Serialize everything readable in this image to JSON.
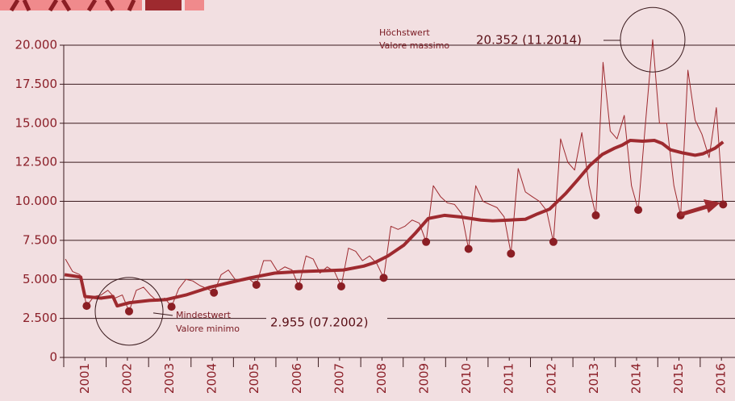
{
  "chart_data": {
    "type": "line",
    "ylim": [
      0,
      20000
    ],
    "yticks": [
      0,
      {
        "value": 2500,
        "label": "2.500"
      },
      {
        "value": 5000,
        "label": "5.000"
      },
      {
        "value": 7500,
        "label": "7.500"
      },
      {
        "value": 10000,
        "label": "10.000"
      },
      {
        "value": 12500,
        "label": "12.500"
      },
      {
        "value": 15000,
        "label": "15.000"
      },
      {
        "value": 17500,
        "label": "17.500"
      },
      {
        "value": 20000,
        "label": "20.000"
      }
    ],
    "xlim": [
      2001,
      2016.82
    ],
    "xticks": [
      {
        "value": 2001.5,
        "label": "2001"
      },
      {
        "value": 2002.5,
        "label": "2002"
      },
      {
        "value": 2003.5,
        "label": "2003"
      },
      {
        "value": 2004.5,
        "label": "2004"
      },
      {
        "value": 2005.5,
        "label": "2005"
      },
      {
        "value": 2006.5,
        "label": "2006"
      },
      {
        "value": 2007.5,
        "label": "2007"
      },
      {
        "value": 2008.5,
        "label": "2008"
      },
      {
        "value": 2009.5,
        "label": "2009"
      },
      {
        "value": 2010.5,
        "label": "2010"
      },
      {
        "value": 2011.5,
        "label": "2011"
      },
      {
        "value": 2012.5,
        "label": "2012"
      },
      {
        "value": 2013.5,
        "label": "2013"
      },
      {
        "value": 2014.5,
        "label": "2014"
      },
      {
        "value": 2015.5,
        "label": "2015"
      },
      {
        "value": 2016.5,
        "label": "2016"
      }
    ],
    "grid": true,
    "series": [
      {
        "style": "thin",
        "color": "#9e2a2f",
        "x": [
          2001.04,
          2001.21,
          2001.38,
          2001.54,
          2001.71,
          2001.88,
          2002.04,
          2002.21,
          2002.38,
          2002.54,
          2002.71,
          2002.88,
          2003.04,
          2003.21,
          2003.38,
          2003.54,
          2003.71,
          2003.88,
          2004.04,
          2004.21,
          2004.38,
          2004.54,
          2004.71,
          2004.88,
          2005.04,
          2005.21,
          2005.38,
          2005.54,
          2005.71,
          2005.88,
          2006.04,
          2006.21,
          2006.38,
          2006.54,
          2006.71,
          2006.88,
          2007.04,
          2007.21,
          2007.38,
          2007.54,
          2007.71,
          2007.88,
          2008.04,
          2008.21,
          2008.38,
          2008.54,
          2008.71,
          2008.88,
          2009.04,
          2009.21,
          2009.38,
          2009.54,
          2009.71,
          2009.88,
          2010.04,
          2010.21,
          2010.38,
          2010.54,
          2010.71,
          2010.88,
          2011.04,
          2011.21,
          2011.38,
          2011.54,
          2011.71,
          2011.88,
          2012.04,
          2012.21,
          2012.38,
          2012.54,
          2012.71,
          2012.88,
          2013.04,
          2013.21,
          2013.38,
          2013.54,
          2013.71,
          2013.88,
          2014.04,
          2014.21,
          2014.38,
          2014.54,
          2014.71,
          2014.88,
          2015.04,
          2015.21,
          2015.38,
          2015.54,
          2015.71,
          2015.88,
          2016.04,
          2016.21,
          2016.38,
          2016.54
        ],
        "values": [
          6300,
          5500,
          5300,
          3300,
          3900,
          4000,
          4300,
          3800,
          4000,
          2955,
          4300,
          4500,
          4000,
          3600,
          3800,
          3250,
          4400,
          5000,
          4900,
          4600,
          4400,
          4150,
          5300,
          5600,
          5000,
          4900,
          5000,
          4650,
          6200,
          6200,
          5500,
          5800,
          5600,
          4550,
          6500,
          6300,
          5400,
          5800,
          5500,
          4550,
          7000,
          6800,
          6200,
          6500,
          6000,
          5100,
          8400,
          8200,
          8400,
          8800,
          8600,
          7400,
          11000,
          10300,
          9900,
          9800,
          9200,
          6950,
          11000,
          10000,
          9800,
          9600,
          9000,
          6650,
          12100,
          10600,
          10300,
          10000,
          9400,
          7400,
          14000,
          12500,
          12000,
          14400,
          11000,
          9100,
          18900,
          14500,
          14000,
          15500,
          11000,
          9450,
          15000,
          20352,
          15000,
          15000,
          11000,
          9100,
          18400,
          15200,
          14300,
          12800,
          16000,
          9800
        ]
      },
      {
        "style": "thick",
        "color": "#9e2a2f",
        "x": [
          2001.02,
          2001.4,
          2001.5,
          2001.88,
          2002.16,
          2002.26,
          2002.54,
          2003.02,
          2003.4,
          2003.88,
          2004.45,
          2004.92,
          2005.4,
          2005.97,
          2006.54,
          2007.11,
          2007.59,
          2008.07,
          2008.35,
          2008.64,
          2009.02,
          2009.3,
          2009.59,
          2009.97,
          2010.35,
          2010.83,
          2011.11,
          2011.5,
          2011.88,
          2012.17,
          2012.45,
          2012.64,
          2012.83,
          2013.12,
          2013.4,
          2013.69,
          2013.98,
          2014.16,
          2014.35,
          2014.64,
          2014.92,
          2015.11,
          2015.3,
          2015.59,
          2015.88,
          2016.07,
          2016.35,
          2016.54
        ],
        "values": [
          5300,
          5150,
          3900,
          3800,
          3900,
          3300,
          3500,
          3650,
          3700,
          4000,
          4500,
          4800,
          5100,
          5400,
          5500,
          5550,
          5600,
          5850,
          6100,
          6500,
          7200,
          8000,
          8900,
          9100,
          9000,
          8800,
          8750,
          8800,
          8850,
          9200,
          9500,
          10000,
          10500,
          11400,
          12300,
          13000,
          13400,
          13600,
          13900,
          13850,
          13900,
          13700,
          13300,
          13100,
          12950,
          13050,
          13400,
          13800
        ]
      },
      {
        "style": "dots",
        "color": "#8b1e24",
        "x": [
          2001.54,
          2002.54,
          2003.54,
          2004.54,
          2005.54,
          2006.54,
          2007.54,
          2008.54,
          2009.54,
          2010.54,
          2011.54,
          2012.54,
          2013.54,
          2014.54,
          2015.54,
          2016.54
        ],
        "values": [
          3300,
          2955,
          3250,
          4150,
          4650,
          4550,
          4550,
          5100,
          7400,
          6950,
          6650,
          7400,
          9100,
          9450,
          9100,
          9800
        ]
      }
    ],
    "annotations": [
      {
        "lines": [
          "Höchstwert",
          "Valore massimo"
        ],
        "text": "20.352 (11.2014)"
      },
      {
        "lines": [
          "Mindestwert",
          "Valore minimo"
        ],
        "text": "2.955 (07.2002)"
      }
    ]
  }
}
